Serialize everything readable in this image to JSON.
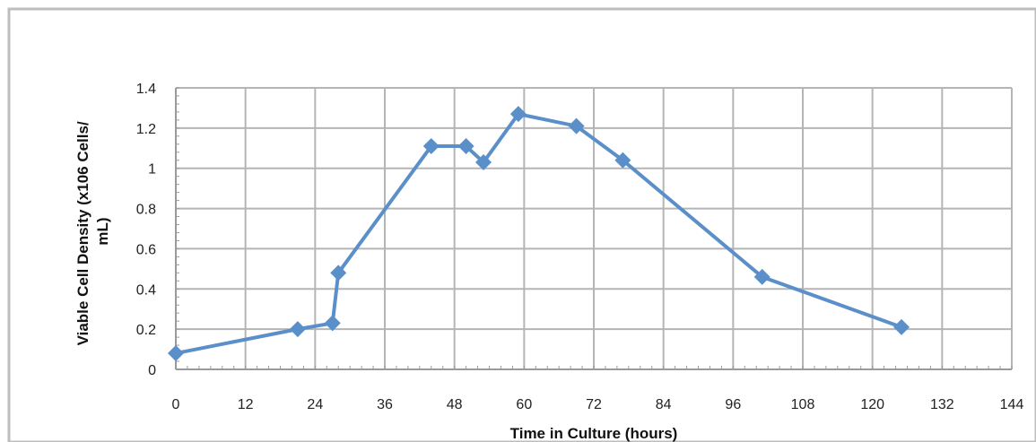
{
  "chart_data": {
    "type": "line",
    "title": "",
    "xlabel": "Time in Culture (hours)",
    "ylabel_lines": [
      "Viable Cell Density (x106 Cells/",
      "mL)"
    ],
    "xlim": [
      0,
      144
    ],
    "ylim": [
      0,
      1.4
    ],
    "x_ticks": [
      0,
      12,
      24,
      36,
      48,
      60,
      72,
      84,
      96,
      108,
      120,
      132,
      144
    ],
    "y_ticks": [
      0,
      0.2,
      0.4,
      0.6,
      0.8,
      1,
      1.2,
      1.4
    ],
    "x_tick_labels": [
      "0",
      "12",
      "24",
      "36",
      "48",
      "60",
      "72",
      "84",
      "96",
      "108",
      "120",
      "132",
      "144"
    ],
    "y_tick_labels": [
      "0",
      "0.2",
      "0.4",
      "0.6",
      "0.8",
      "1",
      "1.2",
      "1.4"
    ],
    "grid": true,
    "marker": "diamond",
    "series": [
      {
        "color": "#5b8fc9",
        "x": [
          0,
          21,
          27,
          28,
          44,
          50,
          53,
          59,
          69,
          77,
          101,
          125
        ],
        "y": [
          0.08,
          0.2,
          0.23,
          0.48,
          1.11,
          1.11,
          1.03,
          1.27,
          1.21,
          1.04,
          0.46,
          0.21
        ]
      }
    ]
  }
}
